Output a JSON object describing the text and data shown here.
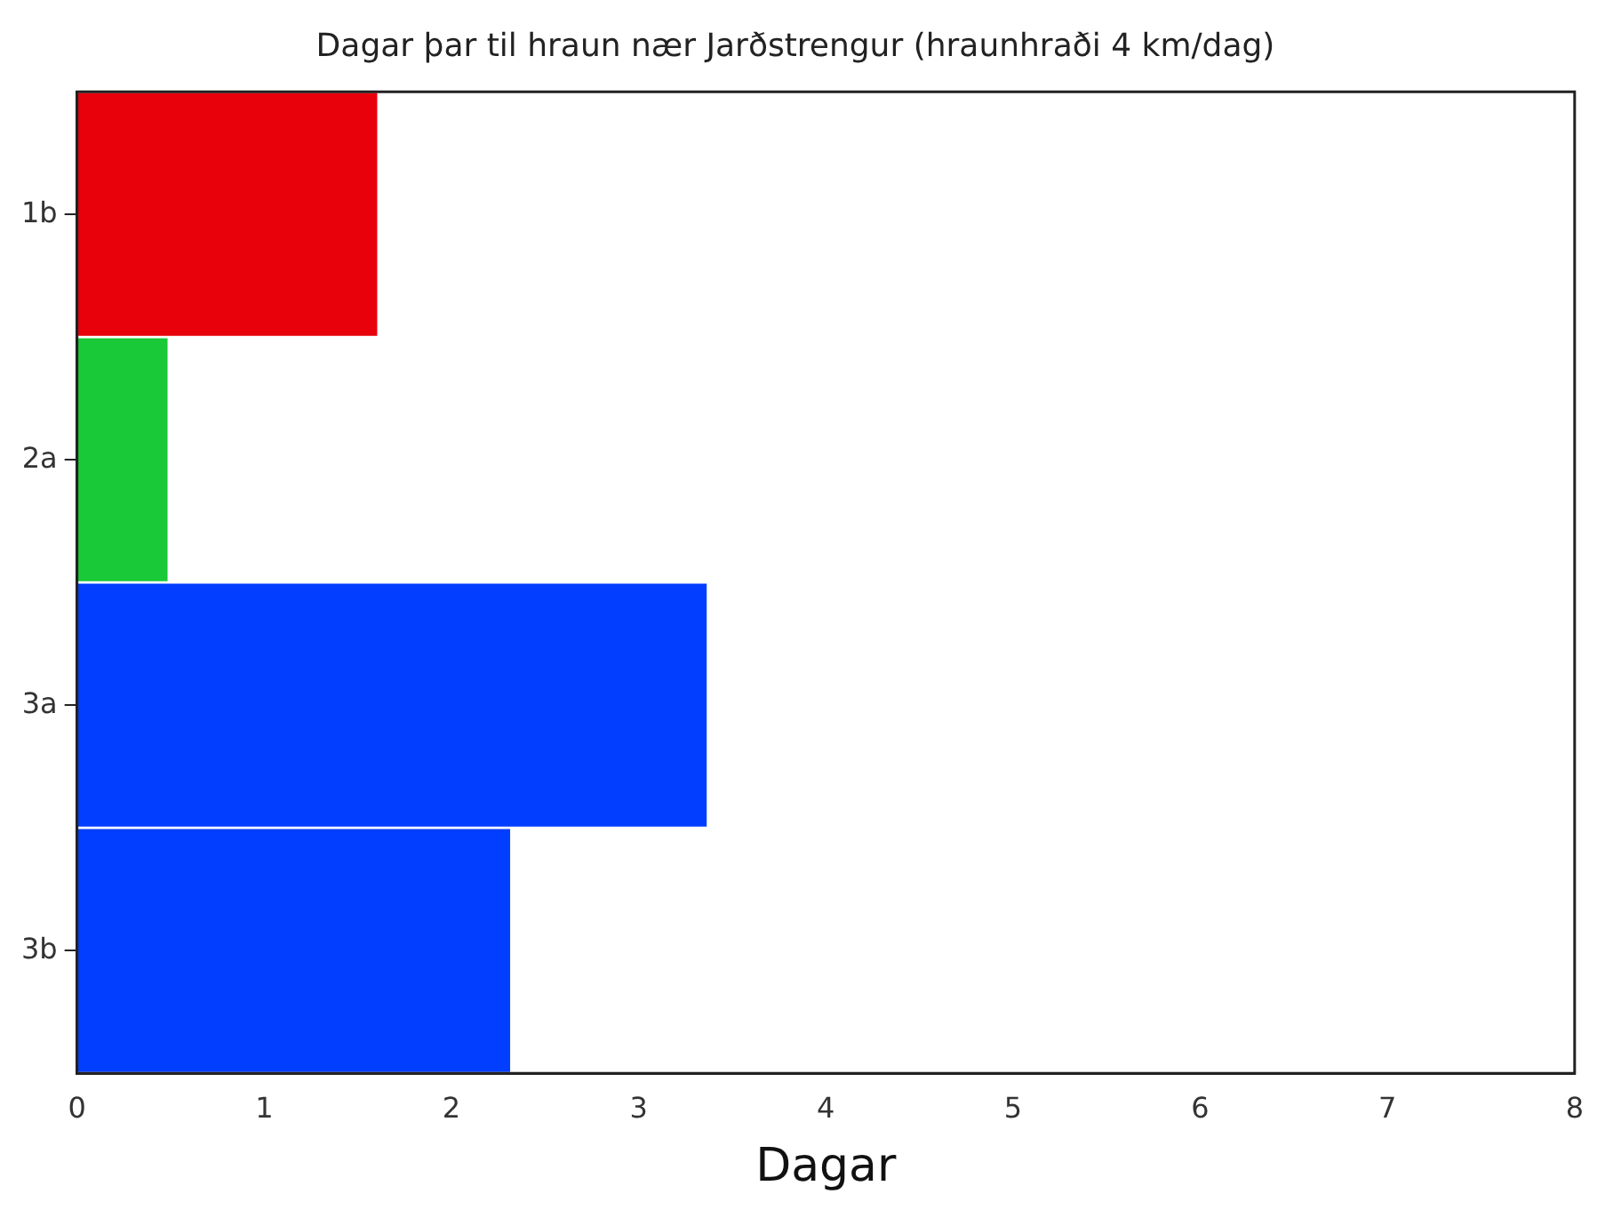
{
  "chart_data": {
    "type": "bar",
    "orientation": "horizontal",
    "title": "Dagar þar til hraun nær Jarðstrengur (hraunhraði 4 km/dag)",
    "xlabel": "Dagar",
    "categories": [
      "1b",
      "2a",
      "3a",
      "3b"
    ],
    "values": [
      1.61,
      0.49,
      3.37,
      2.32
    ],
    "colors": [
      "#e8000b",
      "#1ac938",
      "#023eff",
      "#023eff"
    ],
    "xlim": [
      0,
      8
    ],
    "xticks": [
      0,
      1,
      2,
      3,
      4,
      5,
      6,
      7,
      8
    ],
    "grid": false,
    "legend": false
  }
}
